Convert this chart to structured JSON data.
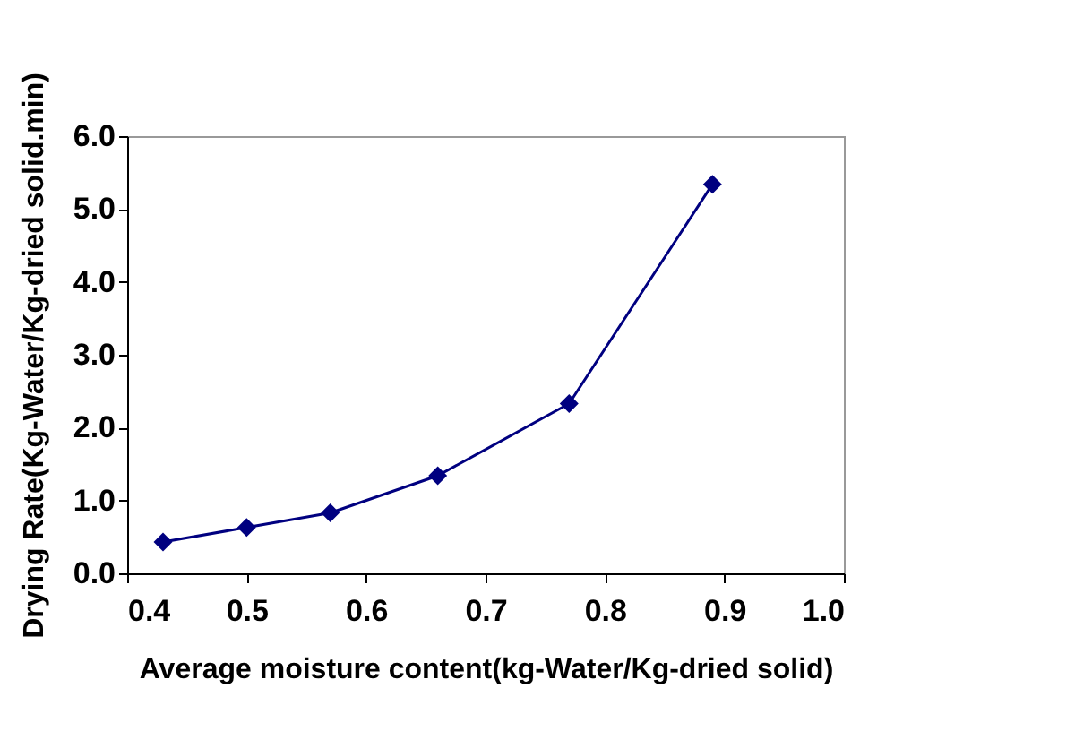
{
  "chart_data": {
    "type": "line",
    "xlabel": "Average moisture content(kg-Water/Kg-dried solid)",
    "ylabel": "Drying Rate(Kg-Water/Kg-dried solid.min)",
    "x": [
      0.43,
      0.5,
      0.57,
      0.66,
      0.77,
      0.89
    ],
    "series": [
      {
        "color": "#000080",
        "values": [
          0.43,
          0.63,
          0.83,
          1.34,
          2.33,
          5.34
        ]
      }
    ],
    "xlim": [
      0.4,
      1.0
    ],
    "xticks": [
      {
        "value": 0.4,
        "label": "0.4"
      },
      {
        "value": 0.5,
        "label": "0.5"
      },
      {
        "value": 0.6,
        "label": "0.6"
      },
      {
        "value": 0.7,
        "label": "0.7"
      },
      {
        "value": 0.8,
        "label": "0.8"
      },
      {
        "value": 0.9,
        "label": "0.9"
      },
      {
        "value": 1.0,
        "label": "1.0"
      }
    ],
    "ylim": [
      0,
      6
    ],
    "yticks": [
      {
        "value": 0,
        "label": "0.0"
      },
      {
        "value": 1,
        "label": "1.0"
      },
      {
        "value": 2,
        "label": "2.0"
      },
      {
        "value": 3,
        "label": "3.0"
      },
      {
        "value": 4,
        "label": "4.0"
      },
      {
        "value": 5,
        "label": "5.0"
      },
      {
        "value": 6,
        "label": "6.0"
      }
    ],
    "grid": false,
    "marker": "diamond",
    "line_style": "solid"
  }
}
